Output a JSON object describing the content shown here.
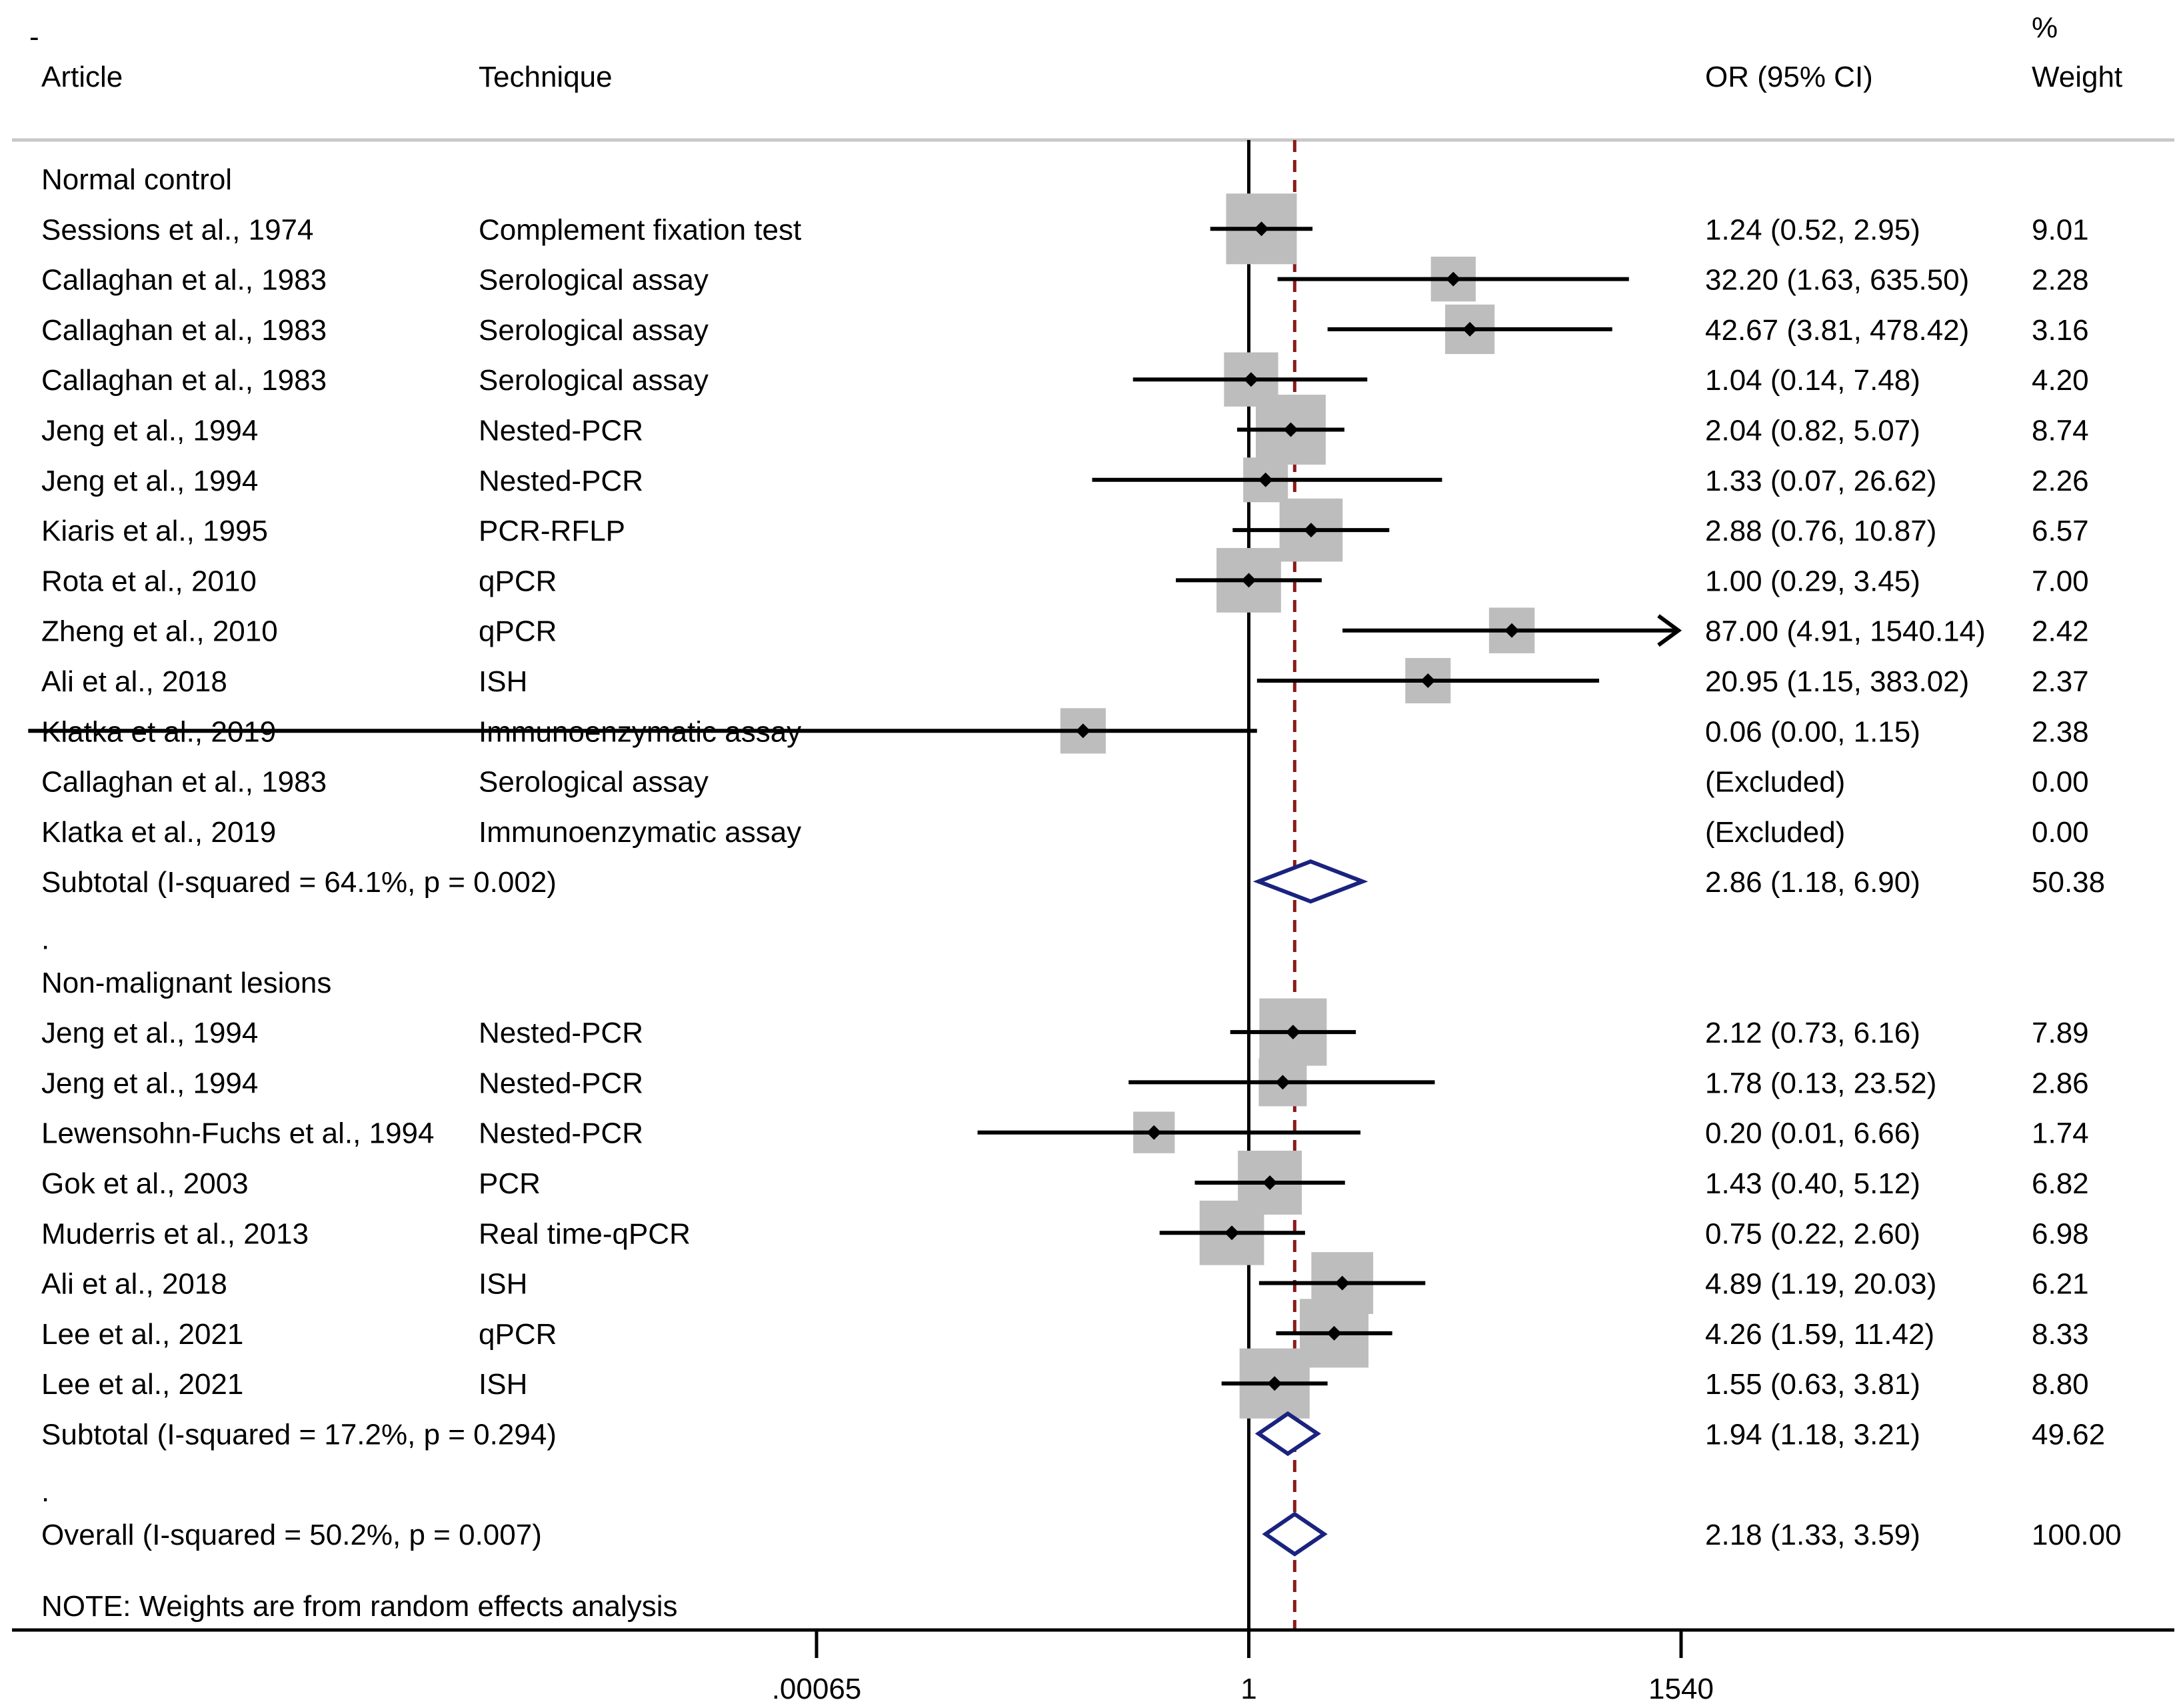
{
  "chart_data": {
    "type": "forest",
    "scale": "log",
    "x_ticks": [
      {
        "label": ".00065",
        "value": 0.00065
      },
      {
        "label": "1",
        "value": 1
      },
      {
        "label": "1540",
        "value": 1540
      }
    ],
    "null_value": 1,
    "overall_estimate": 2.18,
    "headers": {
      "marker": "-",
      "article": "Article",
      "technique": "Technique",
      "or": "OR (95% CI)",
      "weight_line1": "%",
      "weight_line2": "Weight"
    },
    "rows": [
      {
        "kind": "group",
        "label": "Normal control"
      },
      {
        "kind": "study",
        "article": "Sessions et al., 1974",
        "technique": "Complement fixation test",
        "or": 1.24,
        "lo": 0.52,
        "hi": 2.95,
        "or_text": "1.24 (0.52, 2.95)",
        "weight": 9.01,
        "weight_text": "9.01"
      },
      {
        "kind": "study",
        "article": "Callaghan et al., 1983",
        "technique": "Serological assay",
        "or": 32.2,
        "lo": 1.63,
        "hi": 635.5,
        "or_text": "32.20 (1.63, 635.50)",
        "weight": 2.28,
        "weight_text": "2.28"
      },
      {
        "kind": "study",
        "article": "Callaghan et al., 1983",
        "technique": "Serological assay",
        "or": 42.67,
        "lo": 3.81,
        "hi": 478.42,
        "or_text": "42.67 (3.81, 478.42)",
        "weight": 3.16,
        "weight_text": "3.16"
      },
      {
        "kind": "study",
        "article": "Callaghan et al., 1983",
        "technique": "Serological assay",
        "or": 1.04,
        "lo": 0.14,
        "hi": 7.48,
        "or_text": "1.04 (0.14, 7.48)",
        "weight": 4.2,
        "weight_text": "4.20"
      },
      {
        "kind": "study",
        "article": "Jeng et al., 1994",
        "technique": "Nested-PCR",
        "or": 2.04,
        "lo": 0.82,
        "hi": 5.07,
        "or_text": "2.04 (0.82, 5.07)",
        "weight": 8.74,
        "weight_text": "8.74"
      },
      {
        "kind": "study",
        "article": "Jeng et al., 1994",
        "technique": "Nested-PCR",
        "or": 1.33,
        "lo": 0.07,
        "hi": 26.62,
        "or_text": "1.33 (0.07, 26.62)",
        "weight": 2.26,
        "weight_text": "2.26"
      },
      {
        "kind": "study",
        "article": "Kiaris et al., 1995",
        "technique": "PCR-RFLP",
        "or": 2.88,
        "lo": 0.76,
        "hi": 10.87,
        "or_text": "2.88 (0.76, 10.87)",
        "weight": 6.57,
        "weight_text": "6.57"
      },
      {
        "kind": "study",
        "article": "Rota et al., 2010",
        "technique": "qPCR",
        "or": 1.0,
        "lo": 0.29,
        "hi": 3.45,
        "or_text": "1.00 (0.29, 3.45)",
        "weight": 7.0,
        "weight_text": "7.00"
      },
      {
        "kind": "study",
        "article": "Zheng et al., 2010",
        "technique": "qPCR",
        "or": 87.0,
        "lo": 4.91,
        "hi": 1540.14,
        "or_text": "87.00 (4.91, 1540.14)",
        "weight": 2.42,
        "weight_text": "2.42",
        "arrow": true
      },
      {
        "kind": "study",
        "article": "Ali et al., 2018",
        "technique": "ISH",
        "or": 20.95,
        "lo": 1.15,
        "hi": 383.02,
        "or_text": "20.95 (1.15, 383.02)",
        "weight": 2.37,
        "weight_text": "2.37"
      },
      {
        "kind": "study",
        "article": "Klatka et al., 2019",
        "technique": "Immunoenzymatic assay",
        "or": 0.06,
        "lo": 0.0,
        "hi": 1.15,
        "or_text": "0.06 (0.00, 1.15)",
        "weight": 2.38,
        "weight_text": "2.38"
      },
      {
        "kind": "excluded",
        "article": "Callaghan et al., 1983",
        "technique": "Serological assay",
        "or_text": "(Excluded)",
        "weight_text": "0.00"
      },
      {
        "kind": "excluded",
        "article": "Klatka et al., 2019",
        "technique": "Immunoenzymatic assay",
        "or_text": "(Excluded)",
        "weight_text": "0.00"
      },
      {
        "kind": "subtotal",
        "label": "Subtotal  (I-squared = 64.1%, p = 0.002)",
        "or": 2.86,
        "lo": 1.18,
        "hi": 6.9,
        "or_text": "2.86 (1.18, 6.90)",
        "weight_text": "50.38"
      },
      {
        "kind": "spacer",
        "label": "."
      },
      {
        "kind": "group",
        "label": "Non-malignant lesions"
      },
      {
        "kind": "study",
        "article": "Jeng et al., 1994",
        "technique": "Nested-PCR",
        "or": 2.12,
        "lo": 0.73,
        "hi": 6.16,
        "or_text": "2.12 (0.73, 6.16)",
        "weight": 7.89,
        "weight_text": "7.89"
      },
      {
        "kind": "study",
        "article": "Jeng et al., 1994",
        "technique": "Nested-PCR",
        "or": 1.78,
        "lo": 0.13,
        "hi": 23.52,
        "or_text": "1.78 (0.13, 23.52)",
        "weight": 2.86,
        "weight_text": "2.86"
      },
      {
        "kind": "study",
        "article": "Lewensohn-Fuchs et al., 1994",
        "technique": "Nested-PCR",
        "or": 0.2,
        "lo": 0.01,
        "hi": 6.66,
        "or_text": "0.20 (0.01, 6.66)",
        "weight": 1.74,
        "weight_text": "1.74"
      },
      {
        "kind": "study",
        "article": "Gok et al., 2003",
        "technique": "PCR",
        "or": 1.43,
        "lo": 0.4,
        "hi": 5.12,
        "or_text": "1.43 (0.40, 5.12)",
        "weight": 6.82,
        "weight_text": "6.82"
      },
      {
        "kind": "study",
        "article": "Muderris et al., 2013",
        "technique": "Real time-qPCR",
        "or": 0.75,
        "lo": 0.22,
        "hi": 2.6,
        "or_text": "0.75 (0.22, 2.60)",
        "weight": 6.98,
        "weight_text": "6.98"
      },
      {
        "kind": "study",
        "article": "Ali et al., 2018",
        "technique": "ISH",
        "or": 4.89,
        "lo": 1.19,
        "hi": 20.03,
        "or_text": "4.89 (1.19, 20.03)",
        "weight": 6.21,
        "weight_text": "6.21"
      },
      {
        "kind": "study",
        "article": "Lee et al., 2021",
        "technique": "qPCR",
        "or": 4.26,
        "lo": 1.59,
        "hi": 11.42,
        "or_text": "4.26 (1.59, 11.42)",
        "weight": 8.33,
        "weight_text": "8.33"
      },
      {
        "kind": "study",
        "article": "Lee et al., 2021",
        "technique": "ISH",
        "or": 1.55,
        "lo": 0.63,
        "hi": 3.81,
        "or_text": "1.55 (0.63, 3.81)",
        "weight": 8.8,
        "weight_text": "8.80"
      },
      {
        "kind": "subtotal",
        "label": "Subtotal  (I-squared = 17.2%, p = 0.294)",
        "or": 1.94,
        "lo": 1.18,
        "hi": 3.21,
        "or_text": "1.94 (1.18, 3.21)",
        "weight_text": "49.62"
      },
      {
        "kind": "spacer",
        "label": "."
      },
      {
        "kind": "overall",
        "label": "Overall  (I-squared = 50.2%, p = 0.007)",
        "or": 2.18,
        "lo": 1.33,
        "hi": 3.59,
        "or_text": "2.18 (1.33, 3.59)",
        "weight_text": "100.00"
      }
    ],
    "note": "NOTE: Weights are from random effects analysis",
    "colors": {
      "box": "#bdbdbd",
      "point": "#000000",
      "ci_line": "#000000",
      "diamond": "#1a237e",
      "overall_line": "#8b1a1a",
      "header_rule": "#c8c8c8"
    }
  }
}
